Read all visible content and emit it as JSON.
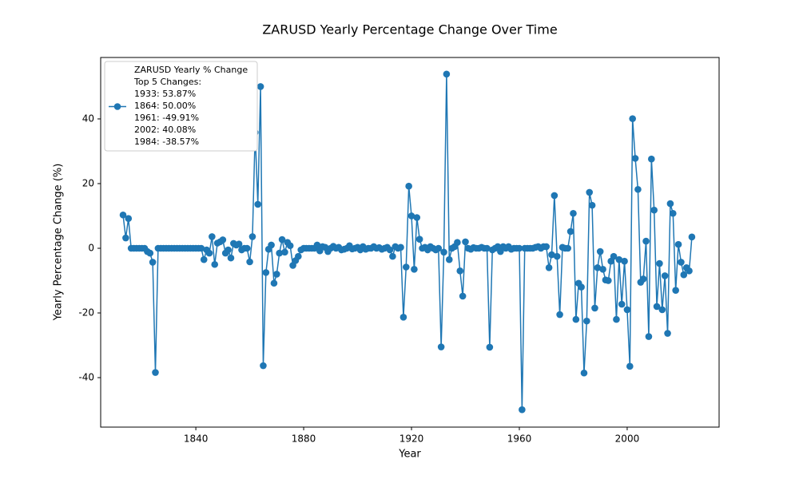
{
  "chart_data": {
    "type": "line",
    "title": "ZARUSD Yearly Percentage Change Over Time",
    "x_label": "Year",
    "y_label": "Yearly Percentage Change (%)",
    "xlim": [
      1804.7,
      2034.1
    ],
    "xticks": [
      1840,
      1880,
      1920,
      1960,
      2000
    ],
    "ylim": [
      -55.3,
      59.0
    ],
    "yticks": [
      -40,
      -20,
      0,
      20,
      40
    ],
    "grid": false,
    "legend_position": "upper left",
    "legend_notes": [
      "Top 5 Changes:",
      "1933: 53.87%",
      "1864: 50.00%",
      "1961: -49.91%",
      "2002: 40.08%",
      "1984: -38.57%"
    ],
    "x": [
      1813,
      1814,
      1815,
      1816,
      1817,
      1818,
      1819,
      1820,
      1821,
      1822,
      1823,
      1824,
      1825,
      1826,
      1827,
      1828,
      1829,
      1830,
      1831,
      1832,
      1833,
      1834,
      1835,
      1836,
      1837,
      1838,
      1839,
      1840,
      1841,
      1842,
      1843,
      1844,
      1845,
      1846,
      1847,
      1848,
      1849,
      1850,
      1851,
      1852,
      1853,
      1854,
      1855,
      1856,
      1857,
      1858,
      1859,
      1860,
      1861,
      1862,
      1863,
      1864,
      1865,
      1866,
      1867,
      1868,
      1869,
      1870,
      1871,
      1872,
      1873,
      1874,
      1875,
      1876,
      1877,
      1878,
      1879,
      1880,
      1881,
      1882,
      1883,
      1884,
      1885,
      1886,
      1887,
      1888,
      1889,
      1890,
      1891,
      1892,
      1893,
      1894,
      1895,
      1896,
      1897,
      1898,
      1899,
      1900,
      1901,
      1902,
      1903,
      1904,
      1905,
      1906,
      1907,
      1908,
      1909,
      1910,
      1911,
      1912,
      1913,
      1914,
      1915,
      1916,
      1917,
      1918,
      1919,
      1920,
      1921,
      1922,
      1923,
      1924,
      1925,
      1926,
      1927,
      1928,
      1929,
      1930,
      1931,
      1932,
      1933,
      1934,
      1935,
      1936,
      1937,
      1938,
      1939,
      1940,
      1941,
      1942,
      1943,
      1944,
      1945,
      1946,
      1947,
      1948,
      1949,
      1950,
      1951,
      1952,
      1953,
      1954,
      1955,
      1956,
      1957,
      1958,
      1959,
      1960,
      1961,
      1962,
      1963,
      1964,
      1965,
      1966,
      1967,
      1968,
      1969,
      1970,
      1971,
      1972,
      1973,
      1974,
      1975,
      1976,
      1977,
      1978,
      1979,
      1980,
      1981,
      1982,
      1983,
      1984,
      1985,
      1986,
      1987,
      1988,
      1989,
      1990,
      1991,
      1992,
      1993,
      1994,
      1995,
      1996,
      1997,
      1998,
      1999,
      2000,
      2001,
      2002,
      2003,
      2004,
      2005,
      2006,
      2007,
      2008,
      2009,
      2010,
      2011,
      2012,
      2013,
      2014,
      2015,
      2016,
      2017,
      2018,
      2019,
      2020,
      2021,
      2022,
      2023,
      2024
    ],
    "series": [
      {
        "name": "ZARUSD Yearly % Change",
        "color": "#1f77b4",
        "values": [
          10.3,
          3.2,
          9.2,
          0,
          0,
          0,
          0,
          0,
          0,
          -1,
          -1.5,
          -4.3,
          -38.4,
          0,
          0,
          0,
          0,
          0,
          0,
          0,
          0,
          0,
          0,
          0,
          0,
          0,
          0,
          0,
          0,
          0,
          -3.5,
          -0.5,
          -1.5,
          3.6,
          -5,
          1.6,
          2,
          2.6,
          -1.5,
          -0.5,
          -3,
          1.5,
          1,
          1.3,
          -0.5,
          0,
          0,
          -4.2,
          3.6,
          35.8,
          13.6,
          50,
          -36.3,
          -7.5,
          -0.3,
          1,
          -10.8,
          -8,
          -1.5,
          2.7,
          -1.2,
          1.8,
          0.8,
          -5.3,
          -3.8,
          -2.5,
          -0.5,
          0,
          0,
          0,
          0,
          0,
          1,
          -0.8,
          0.5,
          0.3,
          -1,
          0,
          0.6,
          0,
          0.3,
          -0.5,
          -0.3,
          0,
          0.8,
          -0.2,
          0,
          0.3,
          -0.5,
          0.5,
          -0.3,
          0,
          0,
          0.5,
          0,
          0.2,
          -0.3,
          0,
          0.3,
          -0.5,
          -2.5,
          0.5,
          0,
          0.3,
          -21.3,
          -5.8,
          19.2,
          10,
          -6.5,
          9.5,
          2.8,
          0,
          0.3,
          -0.5,
          0.5,
          0,
          -0.5,
          0,
          -30.5,
          -1.2,
          53.87,
          -3.5,
          0,
          0.5,
          1.8,
          -7,
          -14.8,
          2,
          0,
          -0.3,
          0.2,
          0,
          0,
          0.3,
          0,
          0,
          -30.6,
          -0.5,
          0,
          0.5,
          -1,
          0.5,
          0,
          0.5,
          -0.3,
          0,
          0,
          0,
          -49.91,
          0,
          0,
          0,
          0,
          0.3,
          0.5,
          0,
          0.5,
          0.5,
          -6,
          -2,
          16.3,
          -2.5,
          -20.5,
          0.3,
          0,
          0,
          5.2,
          10.8,
          -22,
          -10.8,
          -12,
          -38.57,
          -22.5,
          17.3,
          13.3,
          -18.5,
          -6,
          -1,
          -6.5,
          -9.8,
          -10,
          -4,
          -2.5,
          -22,
          -3.5,
          -17.3,
          -4,
          -19,
          -36.5,
          40.08,
          27.8,
          18.2,
          -10.5,
          -9.5,
          2.2,
          -27.3,
          27.6,
          11.8,
          -18,
          -4.7,
          -19,
          -8.5,
          -26.3,
          13.8,
          10.8,
          -13,
          1.2,
          -4.3,
          -8.2,
          -6,
          -7,
          3.5
        ]
      }
    ]
  }
}
